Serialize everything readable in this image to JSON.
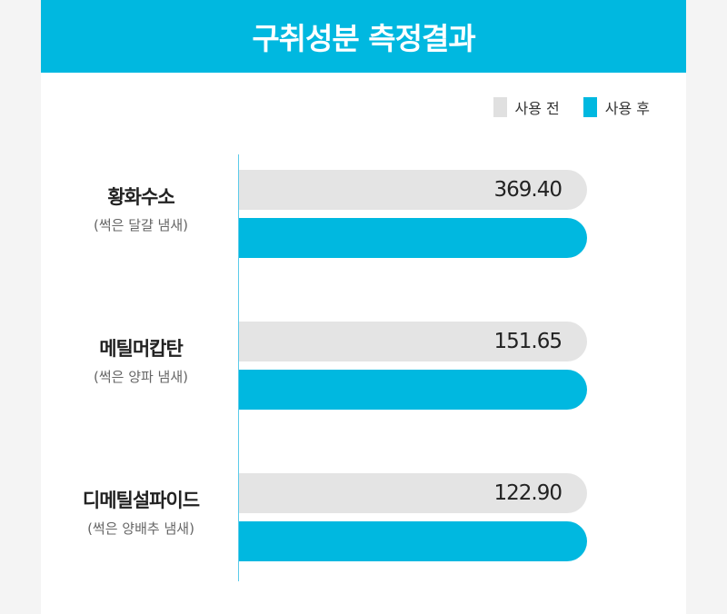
{
  "chart_data": {
    "type": "bar",
    "orientation": "horizontal",
    "title": "구취성분 측정결과",
    "legend_placement": "top-right",
    "categories": [
      {
        "name": "황화수소",
        "note": "(썩은 달걀 냄새)"
      },
      {
        "name": "메틸머캅탄",
        "note": "(썩은 양파 냄새)"
      },
      {
        "name": "디메틸설파이드",
        "note": "(썩은 양배추 냄새)"
      }
    ],
    "series": [
      {
        "name": "사용 전",
        "color": "#e4e4e4",
        "values": [
          "369.40",
          "151.65",
          "122.90"
        ]
      },
      {
        "name": "사용 후",
        "color": "#00b8e0",
        "values": [
          null,
          null,
          null
        ]
      }
    ],
    "grid": false
  }
}
